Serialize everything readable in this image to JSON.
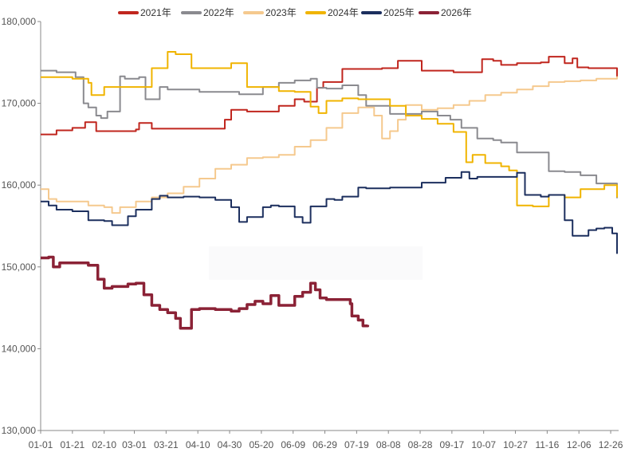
{
  "chart_data": {
    "type": "line",
    "title": "",
    "xlabel": "",
    "ylabel": "",
    "ylim": [
      130000,
      180000
    ],
    "y_ticks": [
      130000,
      140000,
      150000,
      160000,
      170000,
      180000
    ],
    "y_tick_labels": [
      "130,000",
      "140,000",
      "150,000",
      "160,000",
      "170,000",
      "180,000"
    ],
    "x_range_day_index": [
      0,
      364
    ],
    "x_tick_labels": [
      "01-01",
      "01-21",
      "02-10",
      "03-01",
      "03-21",
      "04-10",
      "04-30",
      "05-20",
      "06-09",
      "06-29",
      "07-19",
      "08-08",
      "08-28",
      "09-17",
      "10-07",
      "10-27",
      "11-16",
      "12-06",
      "12-26"
    ],
    "x_tick_day_index": [
      0,
      20,
      40,
      59,
      79,
      99,
      119,
      139,
      159,
      179,
      199,
      219,
      239,
      259,
      279,
      299,
      319,
      339,
      359
    ],
    "grid": false,
    "legend_position": "top-center",
    "series": [
      {
        "name": "2021年",
        "color": "#c0261e",
        "x": [
          0,
          10,
          20,
          28,
          35,
          60,
          62,
          70,
          110,
          116,
          120,
          130,
          150,
          160,
          166,
          174,
          178,
          190,
          215,
          225,
          240,
          260,
          278,
          285,
          290,
          300,
          315,
          320,
          330,
          335,
          338,
          345,
          363
        ],
        "y": [
          166200,
          166700,
          167000,
          167700,
          166600,
          166800,
          167600,
          166900,
          166900,
          168000,
          169200,
          169000,
          169700,
          170500,
          170200,
          171900,
          172600,
          174200,
          174300,
          175200,
          174000,
          173800,
          175400,
          175200,
          174700,
          174900,
          175000,
          175700,
          174900,
          175500,
          174400,
          174300,
          173200
        ]
      },
      {
        "name": "2022年",
        "color": "#8a8a8f",
        "x": [
          0,
          10,
          22,
          27,
          30,
          35,
          38,
          42,
          50,
          53,
          62,
          66,
          75,
          80,
          100,
          125,
          140,
          150,
          160,
          170,
          174,
          180,
          190,
          200,
          205,
          220,
          230,
          240,
          250,
          258,
          265,
          275,
          285,
          290,
          300,
          320,
          330,
          340,
          350,
          363
        ],
        "y": [
          174000,
          173800,
          173200,
          170000,
          169500,
          168500,
          168200,
          169000,
          173300,
          173000,
          173200,
          170500,
          172000,
          171700,
          171400,
          171100,
          172000,
          172500,
          172800,
          173000,
          171900,
          171800,
          172200,
          171000,
          169700,
          168700,
          168700,
          169000,
          168500,
          168000,
          167000,
          165700,
          165500,
          165200,
          164000,
          161700,
          161600,
          161200,
          160200,
          158400
        ]
      },
      {
        "name": "2023年",
        "color": "#f5c98e",
        "x": [
          0,
          5,
          10,
          30,
          40,
          45,
          50,
          60,
          70,
          80,
          90,
          100,
          110,
          120,
          130,
          140,
          150,
          160,
          170,
          180,
          190,
          200,
          210,
          215,
          220,
          225,
          230,
          240,
          250,
          260,
          270,
          280,
          290,
          300,
          310,
          320,
          330,
          340,
          350,
          363
        ],
        "y": [
          159500,
          158300,
          158000,
          157500,
          157300,
          156600,
          157300,
          158000,
          158500,
          159000,
          159800,
          160800,
          162000,
          162500,
          163300,
          163400,
          163700,
          164700,
          165500,
          167000,
          168800,
          169500,
          168500,
          165700,
          166600,
          168000,
          169800,
          169200,
          169400,
          169800,
          170300,
          171000,
          171300,
          171700,
          172100,
          172600,
          172700,
          172800,
          173000,
          173300
        ]
      },
      {
        "name": "2024年",
        "color": "#f0b400",
        "x": [
          0,
          20,
          30,
          32,
          40,
          55,
          70,
          80,
          85,
          95,
          105,
          120,
          130,
          135,
          150,
          160,
          170,
          175,
          180,
          190,
          200,
          210,
          220,
          230,
          240,
          250,
          260,
          268,
          272,
          280,
          290,
          295,
          300,
          310,
          320,
          330,
          340,
          355,
          363
        ],
        "y": [
          173200,
          173000,
          172500,
          171000,
          172000,
          172000,
          174300,
          176300,
          176000,
          174300,
          174300,
          174900,
          172000,
          172000,
          171500,
          171400,
          169600,
          168800,
          170300,
          170600,
          170500,
          170500,
          169700,
          168500,
          168100,
          167500,
          166500,
          162800,
          163700,
          162700,
          162300,
          161800,
          157500,
          157400,
          158800,
          158500,
          159500,
          160000,
          158500
        ]
      },
      {
        "name": "2025年",
        "color": "#1c2f5e",
        "x": [
          0,
          5,
          10,
          20,
          30,
          40,
          45,
          55,
          60,
          70,
          75,
          80,
          90,
          100,
          110,
          120,
          125,
          130,
          140,
          145,
          150,
          160,
          165,
          170,
          180,
          185,
          190,
          200,
          205,
          220,
          240,
          255,
          265,
          270,
          275,
          280,
          285,
          295,
          300,
          305,
          315,
          320,
          330,
          335,
          345,
          350,
          355,
          360,
          363
        ],
        "y": [
          158000,
          157500,
          157000,
          156800,
          155700,
          155600,
          155100,
          156200,
          157000,
          158300,
          158700,
          158500,
          158600,
          158500,
          158200,
          157300,
          155500,
          156100,
          157300,
          157500,
          157400,
          156100,
          155400,
          157400,
          158300,
          158200,
          158600,
          159700,
          159600,
          159700,
          160300,
          160900,
          161600,
          160800,
          161000,
          161000,
          161000,
          161000,
          161500,
          158800,
          158600,
          158800,
          155700,
          153800,
          154500,
          154700,
          154800,
          154100,
          151600
        ]
      },
      {
        "name": "2026年",
        "color": "#8b2236",
        "x": [
          0,
          5,
          8,
          12,
          20,
          30,
          36,
          40,
          45,
          55,
          60,
          65,
          70,
          75,
          80,
          85,
          88,
          93,
          95,
          100,
          110,
          120,
          125,
          130,
          135,
          140,
          145,
          150,
          155,
          160,
          165,
          170,
          173,
          176,
          180,
          185,
          190,
          195,
          196,
          198,
          200,
          203,
          206
        ],
        "y": [
          151100,
          151200,
          150000,
          150500,
          150500,
          150200,
          148500,
          147400,
          147600,
          147900,
          148000,
          146600,
          145300,
          144800,
          144400,
          143700,
          142500,
          142500,
          144800,
          144900,
          144800,
          144600,
          144900,
          145400,
          145800,
          145500,
          146500,
          145300,
          145300,
          146400,
          146900,
          148000,
          147200,
          146200,
          146000,
          146000,
          146000,
          145500,
          144000,
          144000,
          143500,
          142800,
          142900
        ]
      }
    ]
  }
}
